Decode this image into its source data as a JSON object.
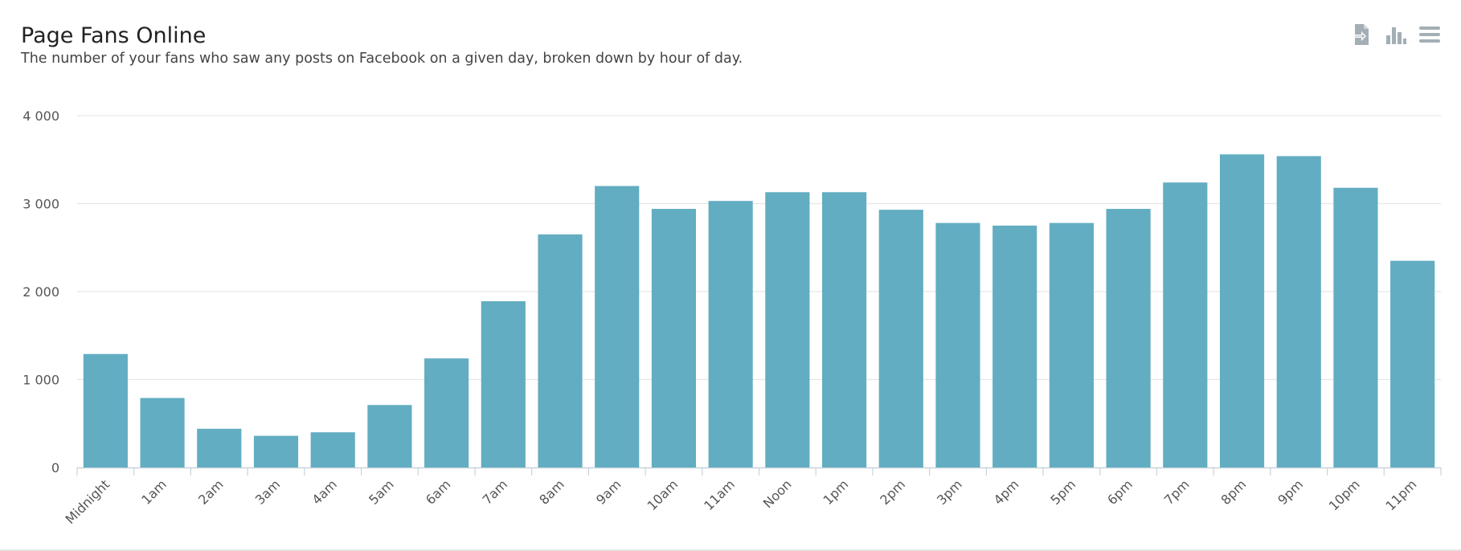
{
  "header": {
    "title": "Page Fans Online",
    "subtitle": "The number of your fans who saw any posts on Facebook on a given day, broken down by hour of day."
  },
  "toolbar": {
    "icons": [
      "export-icon",
      "chart-type-icon",
      "menu-icon"
    ]
  },
  "colors": {
    "bar": "#62adc2",
    "grid": "#e6e6e6",
    "axis": "#c8d3dd",
    "icon": "#a4aeb5"
  },
  "chart_data": {
    "type": "bar",
    "title": "Page Fans Online",
    "xlabel": "",
    "ylabel": "",
    "ylim": [
      0,
      4000
    ],
    "yticks": [
      0,
      1000,
      2000,
      3000,
      4000
    ],
    "ytick_labels": [
      "0",
      "1 000",
      "2 000",
      "3 000",
      "4 000"
    ],
    "categories": [
      "Midnight",
      "1am",
      "2am",
      "3am",
      "4am",
      "5am",
      "6am",
      "7am",
      "8am",
      "9am",
      "10am",
      "11am",
      "Noon",
      "1pm",
      "2pm",
      "3pm",
      "4pm",
      "5pm",
      "6pm",
      "7pm",
      "8pm",
      "9pm",
      "10pm",
      "11pm"
    ],
    "values": [
      1290,
      790,
      440,
      360,
      400,
      710,
      1240,
      1890,
      2650,
      3200,
      2940,
      3030,
      3130,
      3130,
      2930,
      2780,
      2750,
      2780,
      2940,
      3240,
      3560,
      3540,
      3180,
      2350
    ],
    "grid": true
  }
}
